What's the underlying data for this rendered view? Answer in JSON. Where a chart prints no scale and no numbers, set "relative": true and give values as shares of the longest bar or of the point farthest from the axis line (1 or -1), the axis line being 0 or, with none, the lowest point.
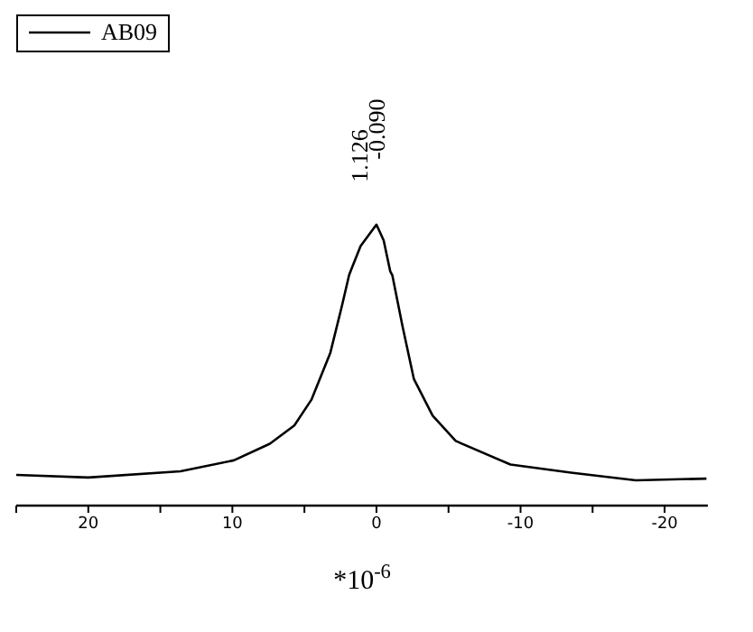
{
  "chart_data": {
    "type": "line",
    "relative": true,
    "xlabel": "*10$^{-6}$",
    "legend": "top left",
    "marker": "none",
    "line_style": "solid",
    "tick_labels": "x",
    "xlim": [
      25,
      -23
    ],
    "xticks": [
      {
        "value": 25,
        "label": null
      },
      20,
      {
        "value": 15,
        "label": null
      },
      10,
      {
        "value": 5,
        "label": null
      },
      0,
      {
        "value": -5,
        "label": null
      },
      -10,
      {
        "value": -15,
        "label": null
      },
      -20
    ],
    "x": [
      25,
      20,
      13.6,
      9.9,
      7.4,
      5.7,
      4.5,
      3.2,
      2.4,
      1.9,
      1.75,
      1.1,
      0,
      -0.5,
      -0.96,
      -1.1,
      -1.8,
      -2.6,
      -3.9,
      -5.5,
      -9.3,
      -13.5,
      -18,
      -22.9
    ],
    "series": [
      {
        "name": "AB09",
        "color": "#000000",
        "values": [
          0.109,
          0.1,
          0.122,
          0.161,
          0.22,
          0.285,
          0.378,
          0.544,
          0.71,
          0.82,
          0.84,
          0.924,
          1.0,
          0.944,
          0.833,
          0.82,
          0.64,
          0.45,
          0.32,
          0.23,
          0.146,
          0.117,
          0.09,
          0.096
        ]
      }
    ],
    "annotations": [
      {
        "text": "1.126",
        "x": 1.126,
        "y": 0.92
      },
      {
        "text": "-0.090",
        "x": -0.09,
        "y": 1.0
      }
    ]
  }
}
